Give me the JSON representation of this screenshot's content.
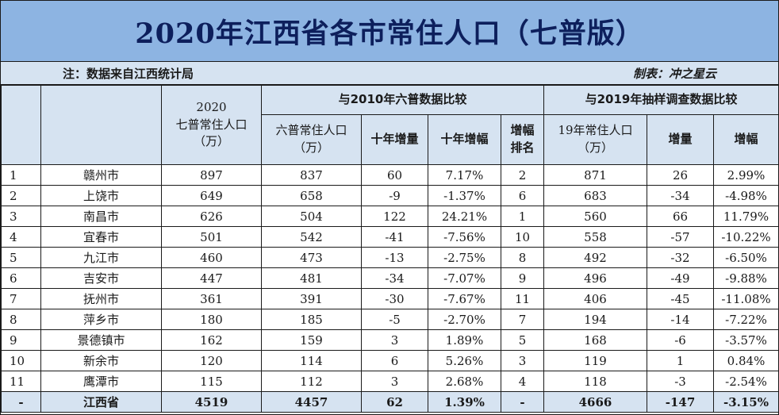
{
  "title": "2020年江西省各市常住人口（七普版）",
  "note": {
    "left": "注：数据来自江西统计局",
    "right": "制表：冲之星云"
  },
  "headers": {
    "pop2020": [
      "2020",
      "七普常住人口",
      "（万）"
    ],
    "group2010": "与2010年六普数据比较",
    "group2019": "与2019年抽样调查数据比较",
    "pop2010": [
      "六普常住人口",
      "（万）"
    ],
    "change10": "十年增量",
    "rate10": "十年增幅",
    "rank": [
      "增幅",
      "排名"
    ],
    "pop2019": [
      "19年常住人口",
      "（万）"
    ],
    "change19": "增量",
    "rate19": "增幅"
  },
  "rows": [
    [
      "1",
      "赣州市",
      "897",
      "837",
      "60",
      "7.17%",
      "2",
      "871",
      "26",
      "2.99%"
    ],
    [
      "2",
      "上饶市",
      "649",
      "658",
      "-9",
      "-1.37%",
      "6",
      "683",
      "-34",
      "-4.98%"
    ],
    [
      "3",
      "南昌市",
      "626",
      "504",
      "122",
      "24.21%",
      "1",
      "560",
      "66",
      "11.79%"
    ],
    [
      "4",
      "宜春市",
      "501",
      "542",
      "-41",
      "-7.56%",
      "10",
      "558",
      "-57",
      "-10.22%"
    ],
    [
      "5",
      "九江市",
      "460",
      "473",
      "-13",
      "-2.75%",
      "8",
      "492",
      "-32",
      "-6.50%"
    ],
    [
      "6",
      "吉安市",
      "447",
      "481",
      "-34",
      "-7.07%",
      "9",
      "496",
      "-49",
      "-9.88%"
    ],
    [
      "7",
      "抚州市",
      "361",
      "391",
      "-30",
      "-7.67%",
      "11",
      "406",
      "-45",
      "-11.08%"
    ],
    [
      "8",
      "萍乡市",
      "180",
      "185",
      "-5",
      "-2.70%",
      "7",
      "194",
      "-14",
      "-7.22%"
    ],
    [
      "9",
      "景德镇市",
      "162",
      "159",
      "3",
      "1.89%",
      "5",
      "168",
      "-6",
      "-3.57%"
    ],
    [
      "10",
      "新余市",
      "120",
      "114",
      "6",
      "5.26%",
      "3",
      "119",
      "1",
      "0.84%"
    ],
    [
      "11",
      "鹰潭市",
      "115",
      "112",
      "3",
      "2.68%",
      "4",
      "118",
      "-3",
      "-2.54%"
    ]
  ],
  "total": [
    "-",
    "江西省",
    "4519",
    "4457",
    "62",
    "1.39%",
    "-",
    "4666",
    "-147",
    "-3.15%"
  ]
}
